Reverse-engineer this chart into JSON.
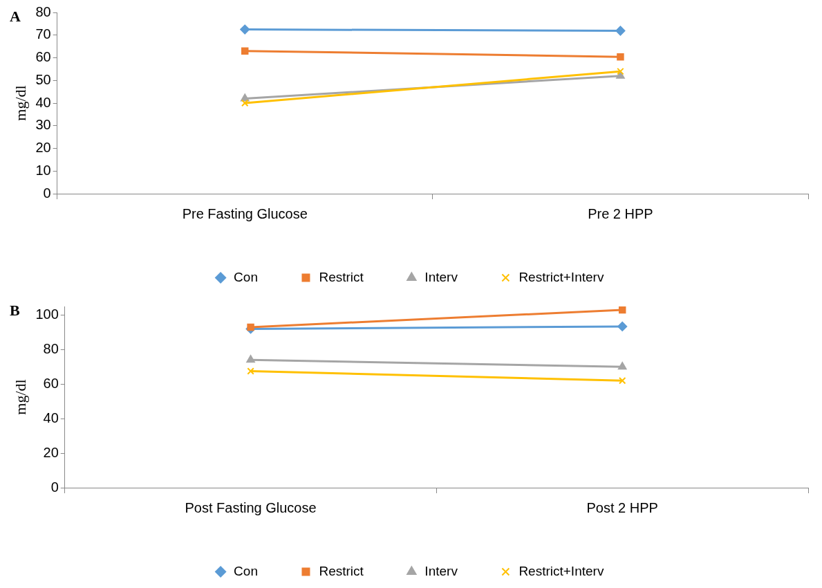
{
  "chart_data": [
    {
      "type": "line",
      "annotations": [
        "A"
      ],
      "ylabel": "mg/dl",
      "categories": [
        "Pre Fasting Glucose",
        "Pre 2 HPP"
      ],
      "ylim": [
        0,
        80
      ],
      "yticks": [
        0,
        10,
        20,
        30,
        40,
        50,
        60,
        70,
        80
      ],
      "grid": false,
      "legend": "bottom",
      "series": [
        {
          "name": "Con",
          "color": "#5b9bd5",
          "marker": "diamond",
          "values": [
            72.5,
            71.9
          ]
        },
        {
          "name": "Restrict",
          "color": "#ed7d31",
          "marker": "square",
          "values": [
            63,
            60.4
          ]
        },
        {
          "name": "Interv",
          "color": "#a5a5a5",
          "marker": "triangle",
          "values": [
            42,
            52
          ]
        },
        {
          "name": "Restrict+Interv",
          "color": "#ffc000",
          "marker": "cross",
          "values": [
            40,
            54
          ]
        }
      ]
    },
    {
      "type": "line",
      "annotations": [
        "B"
      ],
      "ylabel": "mg/dl",
      "categories": [
        "Post Fasting Glucose",
        "Post 2 HPP"
      ],
      "ylim": [
        0,
        105
      ],
      "yticks": [
        0,
        20,
        40,
        60,
        80,
        100
      ],
      "grid": false,
      "legend": "bottom",
      "series": [
        {
          "name": "Con",
          "color": "#5b9bd5",
          "marker": "diamond",
          "values": [
            92,
            93.4
          ]
        },
        {
          "name": "Restrict",
          "color": "#ed7d31",
          "marker": "square",
          "values": [
            93,
            103
          ]
        },
        {
          "name": "Interv",
          "color": "#a5a5a5",
          "marker": "triangle",
          "values": [
            74,
            70
          ]
        },
        {
          "name": "Restrict+Interv",
          "color": "#ffc000",
          "marker": "cross",
          "values": [
            67.5,
            62
          ]
        }
      ]
    }
  ]
}
